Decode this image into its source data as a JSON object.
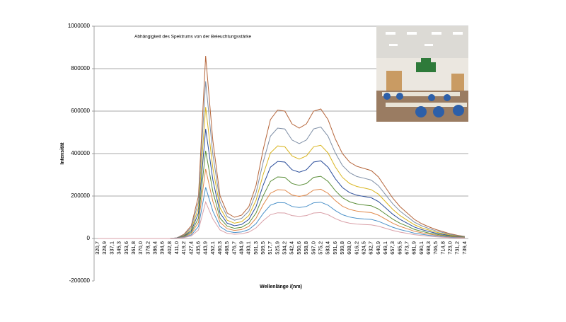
{
  "chart_data": {
    "type": "line",
    "title": "Abhängigkeit des Spektrums von der Beleuchtungsstärke",
    "y_label": "Intensität",
    "x_label": "Wellenlänge /(nm)",
    "categories": [
      "320,7",
      "328,9",
      "337,1",
      "345,3",
      "353,6",
      "361,8",
      "370,0",
      "378,2",
      "386,4",
      "394,6",
      "402,8",
      "411,0",
      "419,2",
      "427,4",
      "435,6",
      "443,9",
      "452,1",
      "460,3",
      "468,5",
      "476,7",
      "484,9",
      "493,1",
      "501,3",
      "509,5",
      "517,7",
      "525,9",
      "534,2",
      "542,4",
      "550,6",
      "558,8",
      "567,0",
      "575,2",
      "583,4",
      "591,6",
      "599,8",
      "608,0",
      "616,2",
      "624,5",
      "632,7",
      "640,9",
      "649,1",
      "657,3",
      "665,5",
      "673,7",
      "681,9",
      "690,1",
      "698,3",
      "706,5",
      "714,8",
      "723,0",
      "731,2",
      "739,4"
    ],
    "ylim": [
      -200000,
      1000000
    ],
    "yticks": [
      -200000,
      0,
      200000,
      400000,
      600000,
      800000,
      1000000
    ],
    "grid": true,
    "series": [
      {
        "color": "#b5653a",
        "values": [
          0,
          0,
          0,
          0,
          0,
          0,
          0,
          0,
          0,
          0,
          0,
          3000,
          20000,
          60000,
          200000,
          860000,
          460000,
          200000,
          120000,
          100000,
          110000,
          150000,
          250000,
          420000,
          560000,
          605000,
          600000,
          540000,
          520000,
          540000,
          600000,
          610000,
          560000,
          470000,
          400000,
          360000,
          340000,
          330000,
          320000,
          290000,
          240000,
          190000,
          150000,
          120000,
          90000,
          70000,
          55000,
          42000,
          32000,
          22000,
          15000,
          10000
        ]
      },
      {
        "color": "#7f8fa6",
        "values": [
          0,
          0,
          0,
          0,
          0,
          0,
          0,
          0,
          0,
          0,
          0,
          3000,
          17000,
          52000,
          172000,
          740000,
          396000,
          172000,
          103000,
          86000,
          95000,
          129000,
          215000,
          361000,
          482000,
          520000,
          516000,
          464000,
          447000,
          464000,
          516000,
          525000,
          482000,
          404000,
          344000,
          310000,
          292000,
          284000,
          275000,
          249000,
          206000,
          163000,
          129000,
          103000,
          77000,
          60000,
          47000,
          36000,
          28000,
          19000,
          13000,
          9000
        ]
      },
      {
        "color": "#d9b520",
        "values": [
          0,
          0,
          0,
          0,
          0,
          0,
          0,
          0,
          0,
          0,
          0,
          2000,
          14000,
          43000,
          144000,
          619000,
          331000,
          144000,
          86000,
          72000,
          79000,
          108000,
          180000,
          302000,
          403000,
          436000,
          432000,
          389000,
          374000,
          389000,
          432000,
          439000,
          403000,
          338000,
          288000,
          259000,
          245000,
          238000,
          230000,
          209000,
          173000,
          137000,
          108000,
          86000,
          65000,
          50000,
          40000,
          30000,
          23000,
          16000,
          11000,
          7000
        ]
      },
      {
        "color": "#2a4d9a",
        "values": [
          0,
          0,
          0,
          0,
          0,
          0,
          0,
          0,
          0,
          0,
          0,
          2000,
          12000,
          36000,
          120000,
          516000,
          276000,
          120000,
          72000,
          60000,
          66000,
          90000,
          150000,
          252000,
          336000,
          363000,
          360000,
          324000,
          312000,
          324000,
          360000,
          366000,
          336000,
          282000,
          240000,
          216000,
          204000,
          198000,
          192000,
          174000,
          144000,
          114000,
          90000,
          72000,
          54000,
          42000,
          33000,
          25000,
          19000,
          13000,
          9000,
          6000
        ]
      },
      {
        "color": "#5c8f3a",
        "values": [
          0,
          0,
          0,
          0,
          0,
          0,
          0,
          0,
          0,
          0,
          0,
          1000,
          10000,
          29000,
          96000,
          413000,
          221000,
          96000,
          58000,
          48000,
          53000,
          72000,
          120000,
          202000,
          269000,
          290000,
          288000,
          259000,
          250000,
          259000,
          288000,
          293000,
          269000,
          226000,
          192000,
          173000,
          163000,
          158000,
          154000,
          139000,
          115000,
          91000,
          72000,
          58000,
          43000,
          34000,
          26000,
          20000,
          15000,
          11000,
          7000,
          5000
        ]
      },
      {
        "color": "#e0884a",
        "values": [
          0,
          0,
          0,
          0,
          0,
          0,
          0,
          0,
          0,
          0,
          0,
          1000,
          8000,
          23000,
          76000,
          327000,
          175000,
          76000,
          46000,
          38000,
          42000,
          57000,
          95000,
          160000,
          213000,
          230000,
          228000,
          205000,
          198000,
          205000,
          228000,
          232000,
          213000,
          179000,
          152000,
          137000,
          129000,
          125000,
          122000,
          110000,
          91000,
          72000,
          57000,
          46000,
          34000,
          27000,
          21000,
          16000,
          12000,
          8000,
          6000,
          4000
        ]
      },
      {
        "color": "#4a90c8",
        "values": [
          0,
          0,
          0,
          0,
          0,
          0,
          0,
          0,
          0,
          0,
          0,
          1000,
          6000,
          17000,
          56000,
          241000,
          129000,
          56000,
          34000,
          28000,
          31000,
          42000,
          70000,
          118000,
          157000,
          169000,
          168000,
          151000,
          146000,
          151000,
          168000,
          171000,
          157000,
          132000,
          112000,
          101000,
          95000,
          92000,
          90000,
          81000,
          67000,
          53000,
          42000,
          34000,
          25000,
          20000,
          15000,
          12000,
          9000,
          6000,
          4000,
          3000
        ]
      },
      {
        "color": "#d9a0a8",
        "values": [
          0,
          0,
          0,
          0,
          0,
          0,
          0,
          0,
          0,
          0,
          0,
          1000,
          4000,
          12000,
          40000,
          172000,
          92000,
          40000,
          24000,
          20000,
          22000,
          30000,
          50000,
          84000,
          112000,
          121000,
          120000,
          108000,
          104000,
          108000,
          120000,
          122000,
          112000,
          94000,
          80000,
          72000,
          68000,
          66000,
          64000,
          58000,
          48000,
          38000,
          30000,
          24000,
          18000,
          14000,
          11000,
          8000,
          6000,
          4000,
          3000,
          2000
        ]
      }
    ]
  }
}
